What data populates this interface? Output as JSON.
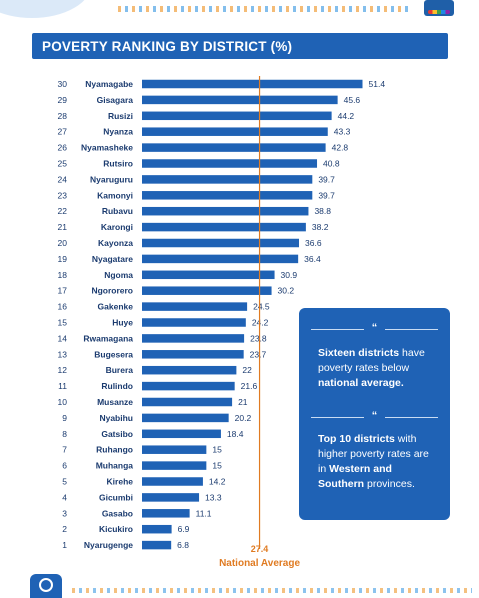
{
  "title": "POVERTY RANKING BY DISTRICT (%)",
  "chart_data": {
    "type": "bar",
    "orientation": "horizontal",
    "title": "POVERTY RANKING BY DISTRICT (%)",
    "xlabel": "",
    "ylabel": "",
    "grid": false,
    "xlim": [
      0,
      55
    ],
    "ranks": [
      30,
      29,
      28,
      27,
      26,
      25,
      24,
      23,
      22,
      21,
      20,
      19,
      18,
      17,
      16,
      15,
      14,
      13,
      12,
      11,
      10,
      9,
      8,
      7,
      6,
      5,
      4,
      3,
      2,
      1
    ],
    "categories": [
      "Nyamagabe",
      "Gisagara",
      "Rusizi",
      "Nyanza",
      "Nyamasheke",
      "Rutsiro",
      "Nyaruguru",
      "Kamonyi",
      "Rubavu",
      "Karongi",
      "Kayonza",
      "Nyagatare",
      "Ngoma",
      "Ngororero",
      "Gakenke",
      "Huye",
      "Rwamagana",
      "Bugesera",
      "Burera",
      "Rulindo",
      "Musanze",
      "Nyabihu",
      "Gatsibo",
      "Ruhango",
      "Muhanga",
      "Kirehe",
      "Gicumbi",
      "Gasabo",
      "Kicukiro",
      "Nyarugenge"
    ],
    "values": [
      51.4,
      45.6,
      44.2,
      43.3,
      42.8,
      40.8,
      39.7,
      39.7,
      38.8,
      38.2,
      36.6,
      36.4,
      30.9,
      30.2,
      24.5,
      24.2,
      23.8,
      23.7,
      22,
      21.6,
      21,
      20.2,
      18.4,
      15,
      15,
      14.2,
      13.3,
      11.1,
      6.9,
      6.8
    ],
    "value_labels": [
      "51.4",
      "45.6",
      "44.2",
      "43.3",
      "42.8",
      "40.8",
      "39.7",
      "39.7",
      "38.8",
      "38.2",
      "36.6",
      "36.4",
      "30.9",
      "30.2",
      "24.5",
      "24.2",
      "23.8",
      "23.7",
      "22",
      "21.6",
      "21",
      "20.2",
      "18.4",
      "15",
      "15",
      "14.2",
      "13.3",
      "11.1",
      "6.9",
      "6.8"
    ],
    "bar_color": "#1f62b5",
    "reference_line": {
      "value": 27.4,
      "value_label": "27.4",
      "label": "National Average",
      "color": "#e07b22"
    }
  },
  "callout": {
    "quote_mark": "“",
    "text1_bold_a": "Sixteen districts",
    "text1_plain_a": " have poverty rates below ",
    "text1_bold_b": "national average.",
    "text2_bold_a": "Top 10 districts",
    "text2_plain_a": " with higher poverty rates are in ",
    "text2_bold_b": "Western and Southern",
    "text2_plain_b": " provinces."
  },
  "colors": {
    "accent": "#1f62b5",
    "highlight": "#e07b22",
    "text": "#1b3b6f"
  }
}
